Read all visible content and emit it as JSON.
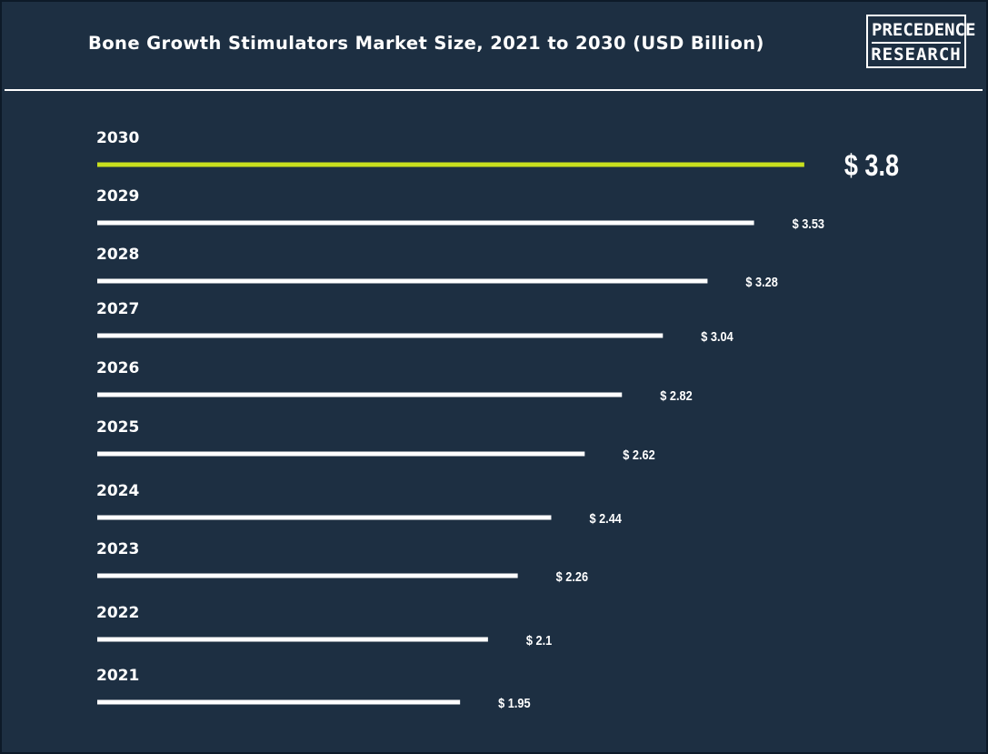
{
  "title": "Bone Growth Stimulators Market Size, 2021 to 2030 (USD Billion)",
  "logo": {
    "line1": "PRECEDENCE",
    "line2": "RESEARCH"
  },
  "colors": {
    "background": "#1d2f42",
    "bar": "#ffffff",
    "highlight": "#c8e01e",
    "text": "#ffffff"
  },
  "chart_data": {
    "type": "bar",
    "orientation": "horizontal",
    "title": "Bone Growth Stimulators Market Size, 2021 to 2030 (USD Billion)",
    "categories": [
      "2030",
      "2029",
      "2028",
      "2027",
      "2026",
      "2025",
      "2024",
      "2023",
      "2022",
      "2021"
    ],
    "values": [
      3.8,
      3.53,
      3.28,
      3.04,
      2.82,
      2.62,
      2.44,
      2.26,
      2.1,
      1.95
    ],
    "value_labels": [
      "$ 3.8",
      "$ 3.53",
      "$ 3.28",
      "$ 3.04",
      "$ 2.82",
      "$ 2.62",
      "$ 2.44",
      "$ 2.26",
      "$ 2.1",
      "$ 1.95"
    ],
    "highlighted": "2030",
    "xlabel": "",
    "ylabel": "",
    "grid": false,
    "legend": "none"
  }
}
